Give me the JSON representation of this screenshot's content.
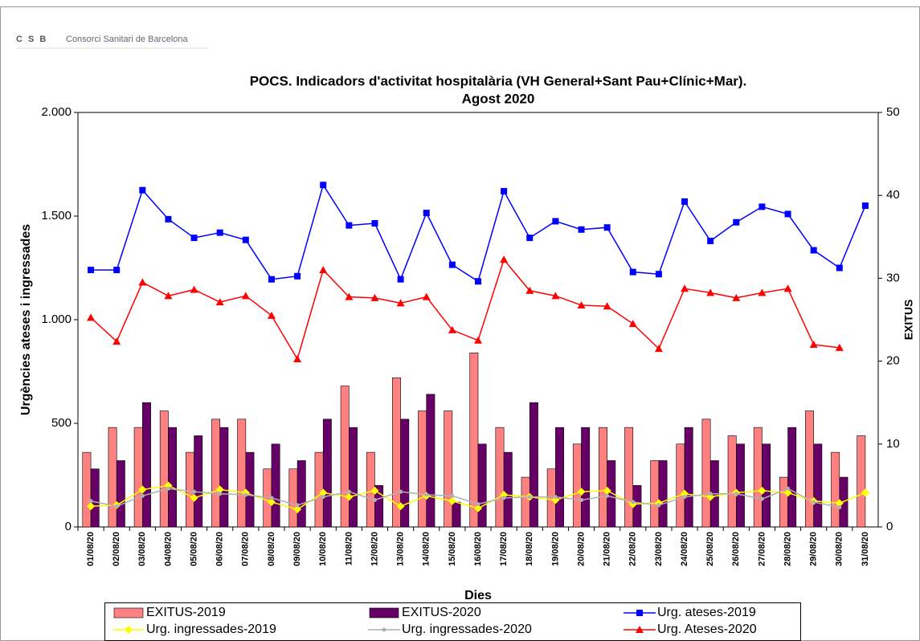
{
  "logo": {
    "mark": "C S B",
    "name": "Consorci Sanitari de Barcelona"
  },
  "chart_data": {
    "type": "combo",
    "title": "POCS.  Indicadors d'activitat hospitalària (VH General+Sant Pau+Clínic+Mar).",
    "subtitle": "Agost  2020",
    "x_label": "Dies",
    "y_label": "Urgències ateses i ingressades",
    "y2_label": "EXITUS",
    "categories": [
      "01/08/20",
      "02/08/20",
      "03/08/20",
      "04/08/20",
      "05/08/20",
      "06/08/20",
      "07/08/20",
      "08/08/20",
      "09/08/20",
      "10/08/20",
      "11/08/20",
      "12/08/20",
      "13/08/20",
      "14/08/20",
      "15/08/20",
      "16/08/20",
      "17/08/20",
      "18/08/20",
      "19/08/20",
      "20/08/20",
      "21/08/20",
      "22/08/20",
      "23/08/20",
      "24/08/20",
      "25/08/20",
      "26/08/20",
      "27/08/20",
      "28/08/20",
      "29/08/20",
      "30/08/20",
      "31/08/20"
    ],
    "ylim": [
      0,
      2000
    ],
    "yticks": [
      0,
      500,
      {
        "value": 1000,
        "label": "1.000"
      },
      {
        "value": 1500,
        "label": "1.500"
      },
      {
        "value": 2000,
        "label": "2.000"
      }
    ],
    "y2lim": [
      0,
      50
    ],
    "y2ticks": [
      0,
      10,
      20,
      30,
      40,
      50
    ],
    "series": [
      {
        "name": "EXITUS-2019",
        "type": "bar",
        "axis": "y2",
        "color": "#ff8080",
        "values": [
          9,
          12,
          12,
          14,
          9,
          13,
          13,
          7,
          7,
          9,
          17,
          9,
          18,
          14,
          14,
          21,
          12,
          6,
          7,
          10,
          12,
          12,
          8,
          10,
          13,
          11,
          12,
          6,
          14,
          9,
          11
        ]
      },
      {
        "name": "EXITUS-2020",
        "type": "bar",
        "axis": "y2",
        "color": "#660066",
        "values": [
          7,
          8,
          15,
          12,
          11,
          12,
          9,
          10,
          8,
          13,
          12,
          5,
          13,
          16,
          3,
          10,
          9,
          15,
          12,
          12,
          8,
          5,
          8,
          12,
          8,
          10,
          10,
          12,
          10,
          6,
          null
        ]
      },
      {
        "name": "Urg. ateses-2019",
        "type": "line",
        "marker": "square",
        "color": "#0000ff",
        "values": [
          1240,
          1240,
          1625,
          1485,
          1395,
          1420,
          1385,
          1195,
          1210,
          1650,
          1455,
          1465,
          1195,
          1515,
          1265,
          1185,
          1620,
          1395,
          1475,
          1435,
          1445,
          1230,
          1220,
          1570,
          1380,
          1470,
          1545,
          1510,
          1335,
          1250,
          1550
        ]
      },
      {
        "name": "Urg. ingressades-2019",
        "type": "line",
        "marker": "diamond",
        "color": "#ffff00",
        "values": [
          100,
          105,
          180,
          200,
          140,
          180,
          165,
          120,
          85,
          165,
          145,
          175,
          100,
          150,
          125,
          90,
          155,
          145,
          130,
          170,
          175,
          110,
          115,
          160,
          145,
          165,
          175,
          165,
          125,
          115,
          165
        ]
      },
      {
        "name": "Urg. ingressades-2020",
        "type": "line",
        "marker": "circle",
        "color": "#b0b0b0",
        "values": [
          125,
          100,
          150,
          185,
          170,
          160,
          155,
          140,
          105,
          145,
          170,
          130,
          170,
          155,
          150,
          110,
          140,
          145,
          145,
          130,
          150,
          120,
          105,
          145,
          160,
          160,
          135,
          185,
          120,
          95,
          null
        ]
      },
      {
        "name": "Urg. Ateses-2020",
        "type": "line",
        "marker": "triangle",
        "color": "#ff0000",
        "values": [
          1010,
          895,
          1180,
          1115,
          1145,
          1085,
          1115,
          1020,
          810,
          1240,
          1110,
          1105,
          1080,
          1110,
          950,
          900,
          1290,
          1140,
          1115,
          1070,
          1065,
          980,
          860,
          1150,
          1130,
          1105,
          1130,
          1150,
          880,
          865,
          null
        ]
      }
    ]
  }
}
